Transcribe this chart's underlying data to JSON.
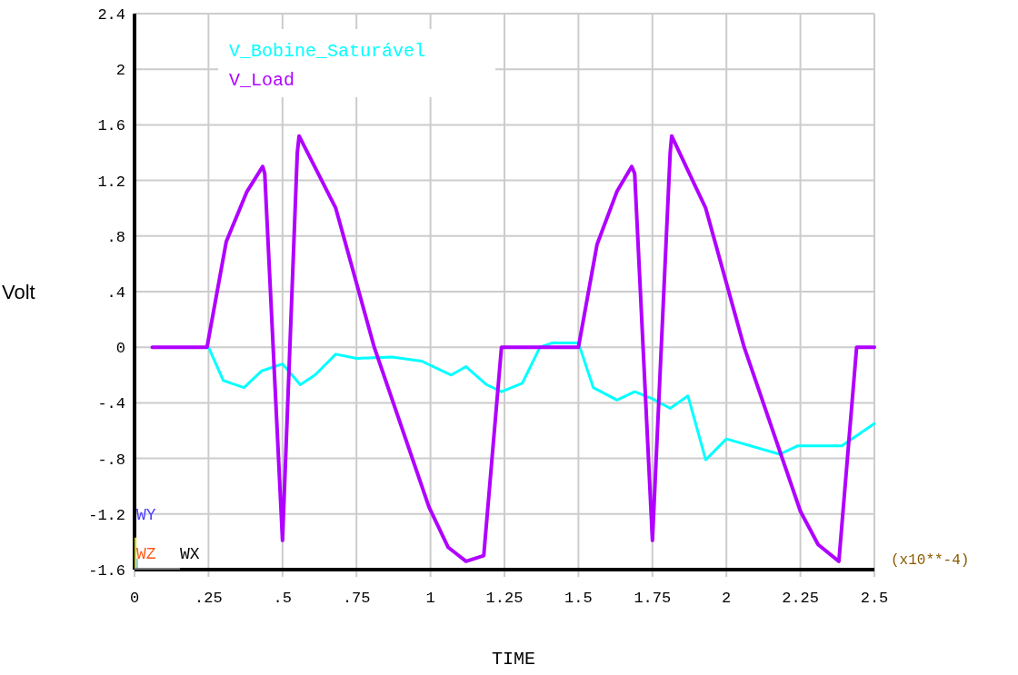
{
  "chart_data": {
    "type": "line",
    "xlabel": "TIME",
    "ylabel": "Volt",
    "xlim": [
      0,
      2.5
    ],
    "ylim": [
      -1.6,
      2.4
    ],
    "xticks": [
      0,
      {
        "value": 0.25,
        "label": ".25"
      },
      {
        "value": 0.5,
        "label": ".5"
      },
      {
        "value": 0.75,
        "label": ".75"
      },
      1,
      1.25,
      1.5,
      1.75,
      2,
      2.25,
      2.5
    ],
    "yticks": [
      -1.6,
      -1.2,
      {
        "value": -0.8,
        "label": "-.8"
      },
      {
        "value": -0.4,
        "label": "-.4"
      },
      0,
      {
        "value": 0.4,
        "label": ".4"
      },
      {
        "value": 0.8,
        "label": ".8"
      },
      1.2,
      1.6,
      2,
      2.4
    ],
    "grid": true,
    "legend": "top left",
    "line_style": "solid",
    "marker": "none",
    "annotations": [
      "(x10**-4)",
      "WY",
      "WZ",
      "WX"
    ],
    "series": [
      {
        "name": "V_Bobine_Saturável",
        "color": "#00ffff",
        "x": [
          0.25,
          0.3,
          0.37,
          0.43,
          0.5,
          0.56,
          0.61,
          0.68,
          0.75,
          0.87,
          0.97,
          1.07,
          1.12,
          1.19,
          1.24,
          1.31,
          1.37,
          1.41,
          1.5,
          1.55,
          1.63,
          1.69,
          1.75,
          1.81,
          1.87,
          1.93,
          2.0,
          2.18,
          2.24,
          2.39,
          2.5
        ],
        "values": [
          0,
          -0.24,
          -0.29,
          -0.17,
          -0.12,
          -0.27,
          -0.2,
          -0.05,
          -0.08,
          -0.07,
          -0.1,
          -0.2,
          -0.14,
          -0.27,
          -0.32,
          -0.26,
          0,
          0.03,
          0.03,
          -0.29,
          -0.38,
          -0.32,
          -0.37,
          -0.44,
          -0.35,
          -0.81,
          -0.66,
          -0.77,
          -0.71,
          -0.71,
          -0.55
        ]
      },
      {
        "name": "V_Load",
        "color": "#b000ff",
        "x": [
          0.06,
          0.245,
          0.31,
          0.38,
          0.433,
          0.44,
          0.5,
          0.55,
          0.556,
          0.68,
          0.81,
          0.995,
          1.06,
          1.12,
          1.18,
          1.24,
          1.5,
          1.563,
          1.63,
          1.68,
          1.69,
          1.75,
          1.81,
          1.815,
          1.93,
          2.06,
          2.25,
          2.31,
          2.38,
          2.44,
          2.5
        ],
        "values": [
          0,
          0,
          0.76,
          1.12,
          1.3,
          1.25,
          -1.39,
          1.4,
          1.52,
          1.0,
          0,
          -1.15,
          -1.44,
          -1.54,
          -1.5,
          0,
          0,
          0.74,
          1.12,
          1.3,
          1.25,
          -1.39,
          1.4,
          1.52,
          1.0,
          0,
          -1.18,
          -1.42,
          -1.54,
          0,
          0
        ]
      }
    ]
  }
}
